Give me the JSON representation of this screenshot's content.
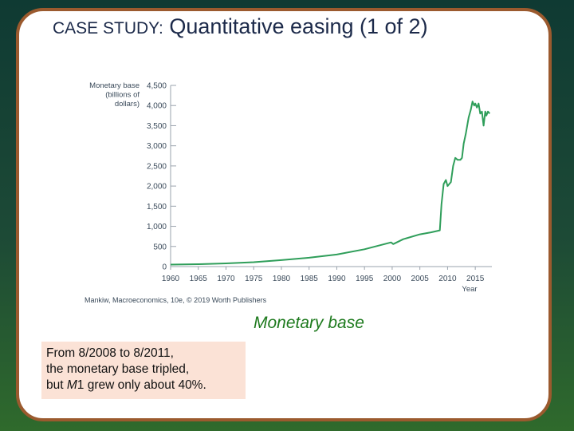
{
  "title": {
    "lead": "CASE STUDY:",
    "rest": " Quantitative easing (1 of 2)"
  },
  "caption": "Monetary base",
  "note": {
    "line1": "From 8/2008 to 8/2011,",
    "line2": "the monetary base tripled,",
    "line3_pre": "but ",
    "line3_var": "M",
    "line3_post": "1 grew only about 40%."
  },
  "chart_data": {
    "type": "line",
    "ylabel": [
      "Monetary base",
      "(billions of",
      "dollars)"
    ],
    "xlabel": "Year",
    "source": "Mankiw, Macroeconomics, 10e, © 2019 Worth Publishers",
    "xlim": [
      1960,
      2018
    ],
    "ylim": [
      0,
      4500
    ],
    "xticks": [
      1960,
      1965,
      1970,
      1975,
      1980,
      1985,
      1990,
      1995,
      2000,
      2005,
      2010,
      2015
    ],
    "yticks": [
      0,
      500,
      1000,
      1500,
      2000,
      2500,
      3000,
      3500,
      4000,
      4500
    ],
    "yticklabels": [
      "0",
      "500",
      "1,000",
      "1,500",
      "2,000",
      "2,500",
      "3,000",
      "3,500",
      "4,000",
      "4,500"
    ],
    "line_color": "#2f9e5a",
    "series": [
      {
        "x": [
          1960,
          1965,
          1970,
          1975,
          1980,
          1985,
          1990,
          1995,
          1999.8,
          2000.2,
          2002,
          2005,
          2007,
          2008.6,
          2008.9,
          2009.3,
          2009.7,
          2010,
          2010.6,
          2011,
          2011.4,
          2011.8,
          2012.3,
          2012.6,
          2012.9,
          2013.3,
          2013.8,
          2014.2,
          2014.5,
          2014.8,
          2015,
          2015.3,
          2015.6,
          2015.9,
          2016.2,
          2016.5,
          2016.8,
          2017,
          2017.3,
          2017.6
        ],
        "y": [
          50,
          60,
          80,
          110,
          160,
          220,
          300,
          430,
          600,
          560,
          680,
          800,
          850,
          900,
          1550,
          2050,
          2150,
          2000,
          2100,
          2500,
          2700,
          2650,
          2650,
          2700,
          3050,
          3300,
          3700,
          3900,
          4100,
          4000,
          4050,
          3950,
          4050,
          3800,
          3850,
          3500,
          3850,
          3750,
          3850,
          3800
        ]
      }
    ]
  }
}
